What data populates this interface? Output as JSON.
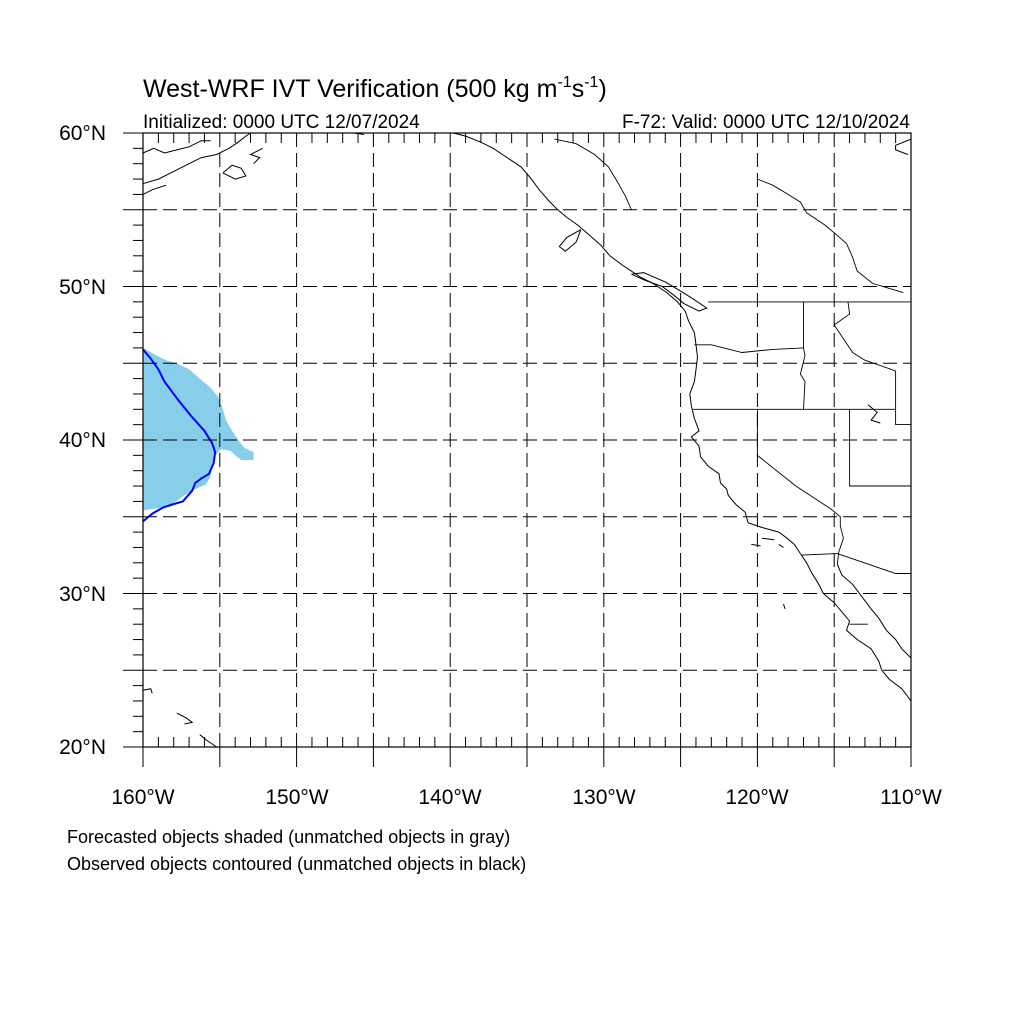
{
  "title": {
    "main": "West-WRF IVT Verification (500 kg m",
    "sup1": "-1",
    "mid": "s",
    "sup2": "-1",
    "close": ")"
  },
  "subtitle_left": "Initialized: 0000 UTC 12/07/2024",
  "subtitle_right": "F-72: Valid: 0000 UTC 12/10/2024",
  "map": {
    "lon_range": [
      -160,
      -110
    ],
    "lat_range": [
      20,
      60
    ],
    "gridline_interval_deg": 5,
    "gridline_style": "dashed",
    "lat_labels": [
      "20°N",
      "30°N",
      "40°N",
      "50°N",
      "60°N"
    ],
    "lon_labels": [
      "160°W",
      "150°W",
      "140°W",
      "130°W",
      "120°W",
      "110°W"
    ],
    "forecast_object_color": "#87ceeb",
    "observed_contour_color": "#0000ff"
  },
  "caption": {
    "line1": "Forecasted objects shaded (unmatched objects in gray)",
    "line2": "Observed objects contoured (unmatched objects in black)"
  },
  "forecast_object": {
    "color": "#87ceeb",
    "outline_lonlat": [
      [
        -160,
        46
      ],
      [
        -159.3,
        45.6
      ],
      [
        -158.5,
        45.2
      ],
      [
        -157.8,
        45.0
      ],
      [
        -157,
        44.6
      ],
      [
        -156.3,
        44.0
      ],
      [
        -155.6,
        43.4
      ],
      [
        -155.1,
        42.8
      ],
      [
        -154.8,
        42.0
      ],
      [
        -154.6,
        41.3
      ],
      [
        -154.2,
        40.6
      ],
      [
        -153.8,
        40.0
      ],
      [
        -153.4,
        39.5
      ],
      [
        -152.8,
        39.2
      ],
      [
        -152.8,
        38.7
      ],
      [
        -153.6,
        38.7
      ],
      [
        -154.0,
        39.0
      ],
      [
        -154.3,
        39.3
      ],
      [
        -154.9,
        39.4
      ],
      [
        -155.3,
        39.0
      ],
      [
        -155.5,
        38.4
      ],
      [
        -155.6,
        37.6
      ],
      [
        -155.9,
        37.1
      ],
      [
        -156.6,
        36.8
      ],
      [
        -157.3,
        36.4
      ],
      [
        -158.0,
        35.9
      ],
      [
        -158.8,
        35.6
      ],
      [
        -160,
        35.4
      ]
    ]
  },
  "observed_contour": {
    "color": "#0000ff",
    "path_lonlat": [
      [
        -160,
        45.9
      ],
      [
        -159.5,
        45.3
      ],
      [
        -159.0,
        44.6
      ],
      [
        -158.6,
        43.8
      ],
      [
        -157.7,
        42.6
      ],
      [
        -156.9,
        41.6
      ],
      [
        -156.0,
        40.6
      ],
      [
        -155.5,
        39.8
      ],
      [
        -155.3,
        39.2
      ],
      [
        -155.4,
        38.5
      ],
      [
        -155.7,
        37.8
      ],
      [
        -156.2,
        37.5
      ],
      [
        -156.6,
        37.2
      ],
      [
        -156.8,
        36.7
      ],
      [
        -157.4,
        36.0
      ],
      [
        -158.1,
        35.8
      ],
      [
        -158.7,
        35.6
      ],
      [
        -159.4,
        35.2
      ],
      [
        -160,
        34.7
      ]
    ]
  },
  "coastlines_lonlat": [
    [
      [
        -160,
        58.7
      ],
      [
        -159.3,
        59.0
      ],
      [
        -158.6,
        58.7
      ],
      [
        -157.8,
        58.9
      ],
      [
        -157.0,
        59.1
      ],
      [
        -156.2,
        59.5
      ],
      [
        -155.6,
        59.5
      ]
    ],
    [
      [
        -160,
        56.7
      ],
      [
        -159.0,
        57.0
      ],
      [
        -158.0,
        57.5
      ],
      [
        -157.0,
        58.0
      ],
      [
        -156.2,
        58.4
      ],
      [
        -155.2,
        58.6
      ],
      [
        -154.4,
        59.0
      ],
      [
        -153.8,
        59.4
      ],
      [
        -153.3,
        59.8
      ],
      [
        -153.0,
        60.0
      ]
    ],
    [
      [
        -160,
        56.0
      ],
      [
        -159.4,
        56.3
      ],
      [
        -158.5,
        56.6
      ]
    ],
    [
      [
        -152.8,
        58.0
      ],
      [
        -152.4,
        58.4
      ],
      [
        -153.0,
        58.6
      ],
      [
        -152.2,
        59.0
      ]
    ],
    [
      [
        -154.8,
        57.4
      ],
      [
        -154.2,
        57.9
      ],
      [
        -153.6,
        57.7
      ],
      [
        -153.3,
        57.2
      ],
      [
        -154.0,
        57.0
      ],
      [
        -154.8,
        57.4
      ]
    ],
    [
      [
        -146.3,
        60.0
      ],
      [
        -145.6,
        59.9
      ]
    ],
    [
      [
        -139.8,
        60.0
      ],
      [
        -139.0,
        59.8
      ],
      [
        -138.0,
        59.4
      ],
      [
        -137.2,
        59.0
      ],
      [
        -136.6,
        58.6
      ],
      [
        -136.0,
        58.2
      ],
      [
        -135.4,
        57.8
      ],
      [
        -134.8,
        57.1
      ],
      [
        -134.2,
        56.3
      ],
      [
        -133.6,
        55.6
      ],
      [
        -133.0,
        55.0
      ],
      [
        -132.4,
        54.5
      ],
      [
        -131.7,
        54.0
      ],
      [
        -131.0,
        53.4
      ],
      [
        -130.2,
        52.7
      ],
      [
        -129.6,
        52.0
      ],
      [
        -128.8,
        51.4
      ],
      [
        -128.2,
        51.0
      ],
      [
        -127.6,
        50.6
      ],
      [
        -126.8,
        50.2
      ],
      [
        -125.9,
        49.6
      ],
      [
        -125.2,
        49.0
      ],
      [
        -124.7,
        48.4
      ],
      [
        -124.5,
        47.8
      ],
      [
        -124.1,
        47.0
      ],
      [
        -124.0,
        46.2
      ],
      [
        -123.9,
        45.4
      ],
      [
        -124.0,
        44.6
      ],
      [
        -124.1,
        43.8
      ],
      [
        -124.4,
        43.0
      ],
      [
        -124.3,
        42.2
      ],
      [
        -124.1,
        41.4
      ],
      [
        -123.8,
        40.6
      ],
      [
        -124.3,
        40.2
      ],
      [
        -123.8,
        39.6
      ],
      [
        -123.7,
        38.9
      ],
      [
        -123.2,
        38.3
      ],
      [
        -122.5,
        37.8
      ],
      [
        -122.4,
        37.2
      ],
      [
        -122.0,
        36.8
      ],
      [
        -121.9,
        36.4
      ],
      [
        -121.4,
        35.8
      ],
      [
        -120.8,
        35.3
      ],
      [
        -120.6,
        34.6
      ],
      [
        -119.7,
        34.3
      ],
      [
        -118.6,
        34.0
      ],
      [
        -118.2,
        33.7
      ],
      [
        -117.6,
        33.2
      ],
      [
        -117.2,
        32.6
      ],
      [
        -116.8,
        32.0
      ],
      [
        -116.5,
        31.4
      ],
      [
        -116.0,
        30.6
      ],
      [
        -115.7,
        30.0
      ],
      [
        -115.0,
        29.4
      ],
      [
        -114.5,
        28.8
      ],
      [
        -114.0,
        28.2
      ],
      [
        -114.2,
        27.6
      ],
      [
        -113.5,
        27.0
      ],
      [
        -112.6,
        26.4
      ],
      [
        -112.1,
        25.6
      ],
      [
        -111.9,
        25.0
      ],
      [
        -111.4,
        24.4
      ],
      [
        -110.6,
        23.8
      ],
      [
        -110.0,
        23.0
      ]
    ],
    [
      [
        -114.8,
        31.9
      ],
      [
        -114.5,
        31.2
      ],
      [
        -113.8,
        30.6
      ],
      [
        -113.2,
        29.8
      ],
      [
        -112.6,
        29.0
      ],
      [
        -112.1,
        28.4
      ],
      [
        -111.6,
        27.6
      ],
      [
        -111.0,
        27.0
      ],
      [
        -110.6,
        26.4
      ],
      [
        -110.0,
        25.8
      ]
    ],
    [
      [
        -131.5,
        53.7
      ],
      [
        -132.4,
        53.2
      ],
      [
        -132.9,
        52.6
      ],
      [
        -132.5,
        52.3
      ],
      [
        -131.8,
        52.9
      ],
      [
        -131.5,
        53.7
      ]
    ],
    [
      [
        -128.2,
        50.8
      ],
      [
        -127.3,
        50.4
      ],
      [
        -126.2,
        50.0
      ],
      [
        -125.4,
        49.4
      ],
      [
        -124.8,
        48.9
      ],
      [
        -123.8,
        48.4
      ],
      [
        -123.3,
        48.6
      ],
      [
        -124.2,
        49.2
      ],
      [
        -125.0,
        49.7
      ],
      [
        -126.0,
        50.3
      ],
      [
        -127.4,
        50.9
      ],
      [
        -128.2,
        50.8
      ]
    ],
    [
      [
        -160,
        23.7
      ],
      [
        -159.5,
        23.8
      ],
      [
        -159.4,
        23.5
      ]
    ],
    [
      [
        -157.8,
        22.2
      ],
      [
        -157.2,
        21.9
      ],
      [
        -156.8,
        21.6
      ],
      [
        -157.3,
        21.5
      ]
    ],
    [
      [
        -156.3,
        20.8
      ],
      [
        -155.8,
        20.4
      ],
      [
        -155.2,
        20.0
      ]
    ],
    [
      [
        -120.4,
        33.2
      ],
      [
        -119.8,
        33.1
      ]
    ],
    [
      [
        -119.7,
        33.6
      ],
      [
        -118.9,
        33.5
      ]
    ],
    [
      [
        -118.6,
        33.2
      ],
      [
        -118.3,
        33.0
      ]
    ],
    [
      [
        -118.3,
        29.3
      ],
      [
        -118.2,
        29.0
      ]
    ],
    [
      [
        -112.8,
        42.3
      ],
      [
        -112.2,
        41.8
      ],
      [
        -112.6,
        41.3
      ],
      [
        -112.0,
        41.1
      ]
    ],
    [
      [
        -110,
        59.6
      ],
      [
        -111.0,
        59.2
      ],
      [
        -111.0,
        58.9
      ],
      [
        -110.2,
        58.6
      ]
    ]
  ],
  "borders_lonlat": [
    [
      [
        -123.2,
        49.0
      ],
      [
        -110,
        49.0
      ]
    ],
    [
      [
        -117.0,
        49.0
      ],
      [
        -117.0,
        46.0
      ],
      [
        -116.9,
        45.5
      ],
      [
        -117.2,
        44.3
      ],
      [
        -116.9,
        43.8
      ],
      [
        -117.0,
        42.0
      ]
    ],
    [
      [
        -124.1,
        46.2
      ],
      [
        -123.0,
        46.2
      ],
      [
        -121.0,
        45.7
      ],
      [
        -119.0,
        45.9
      ],
      [
        -117.0,
        46.0
      ]
    ],
    [
      [
        -124.2,
        42.0
      ],
      [
        -111.0,
        42.0
      ]
    ],
    [
      [
        -120.0,
        42.0
      ],
      [
        -120.0,
        39.0
      ],
      [
        -117.5,
        37.0
      ],
      [
        -115.2,
        35.5
      ],
      [
        -114.6,
        35.0
      ],
      [
        -114.6,
        34.4
      ],
      [
        -114.4,
        33.6
      ],
      [
        -114.7,
        32.7
      ]
    ],
    [
      [
        -114.1,
        49.0
      ],
      [
        -114.0,
        48.2
      ],
      [
        -115.0,
        47.5
      ],
      [
        -114.4,
        46.6
      ],
      [
        -113.8,
        45.7
      ],
      [
        -113.0,
        45.2
      ],
      [
        -111.0,
        44.5
      ]
    ],
    [
      [
        -111.0,
        44.5
      ],
      [
        -111.0,
        41.0
      ],
      [
        -110,
        41.0
      ]
    ],
    [
      [
        -114.0,
        42.0
      ],
      [
        -114.0,
        37.0
      ],
      [
        -110,
        37.0
      ]
    ],
    [
      [
        -117.1,
        32.5
      ],
      [
        -114.8,
        32.6
      ],
      [
        -111.0,
        31.3
      ],
      [
        -110,
        31.3
      ]
    ],
    [
      [
        -114.7,
        32.7
      ],
      [
        -114.8,
        31.9
      ]
    ],
    [
      [
        -114.0,
        28.0
      ],
      [
        -113.3,
        28.0
      ],
      [
        -112.8,
        28.0
      ]
    ],
    [
      [
        -120.0,
        57.0
      ],
      [
        -119.0,
        56.6
      ],
      [
        -118.0,
        56.0
      ],
      [
        -117.2,
        55.5
      ],
      [
        -116.8,
        54.8
      ],
      [
        -115.6,
        54.0
      ],
      [
        -115.0,
        53.5
      ],
      [
        -114.2,
        52.8
      ],
      [
        -113.8,
        51.9
      ],
      [
        -113.5,
        51.0
      ],
      [
        -112.5,
        50.2
      ],
      [
        -110.5,
        49.6
      ]
    ],
    [
      [
        -133.2,
        59.6
      ],
      [
        -131.8,
        59.3
      ],
      [
        -130.6,
        58.6
      ],
      [
        -129.7,
        57.8
      ],
      [
        -129.1,
        56.8
      ],
      [
        -128.6,
        55.9
      ],
      [
        -128.2,
        55.0
      ]
    ]
  ]
}
